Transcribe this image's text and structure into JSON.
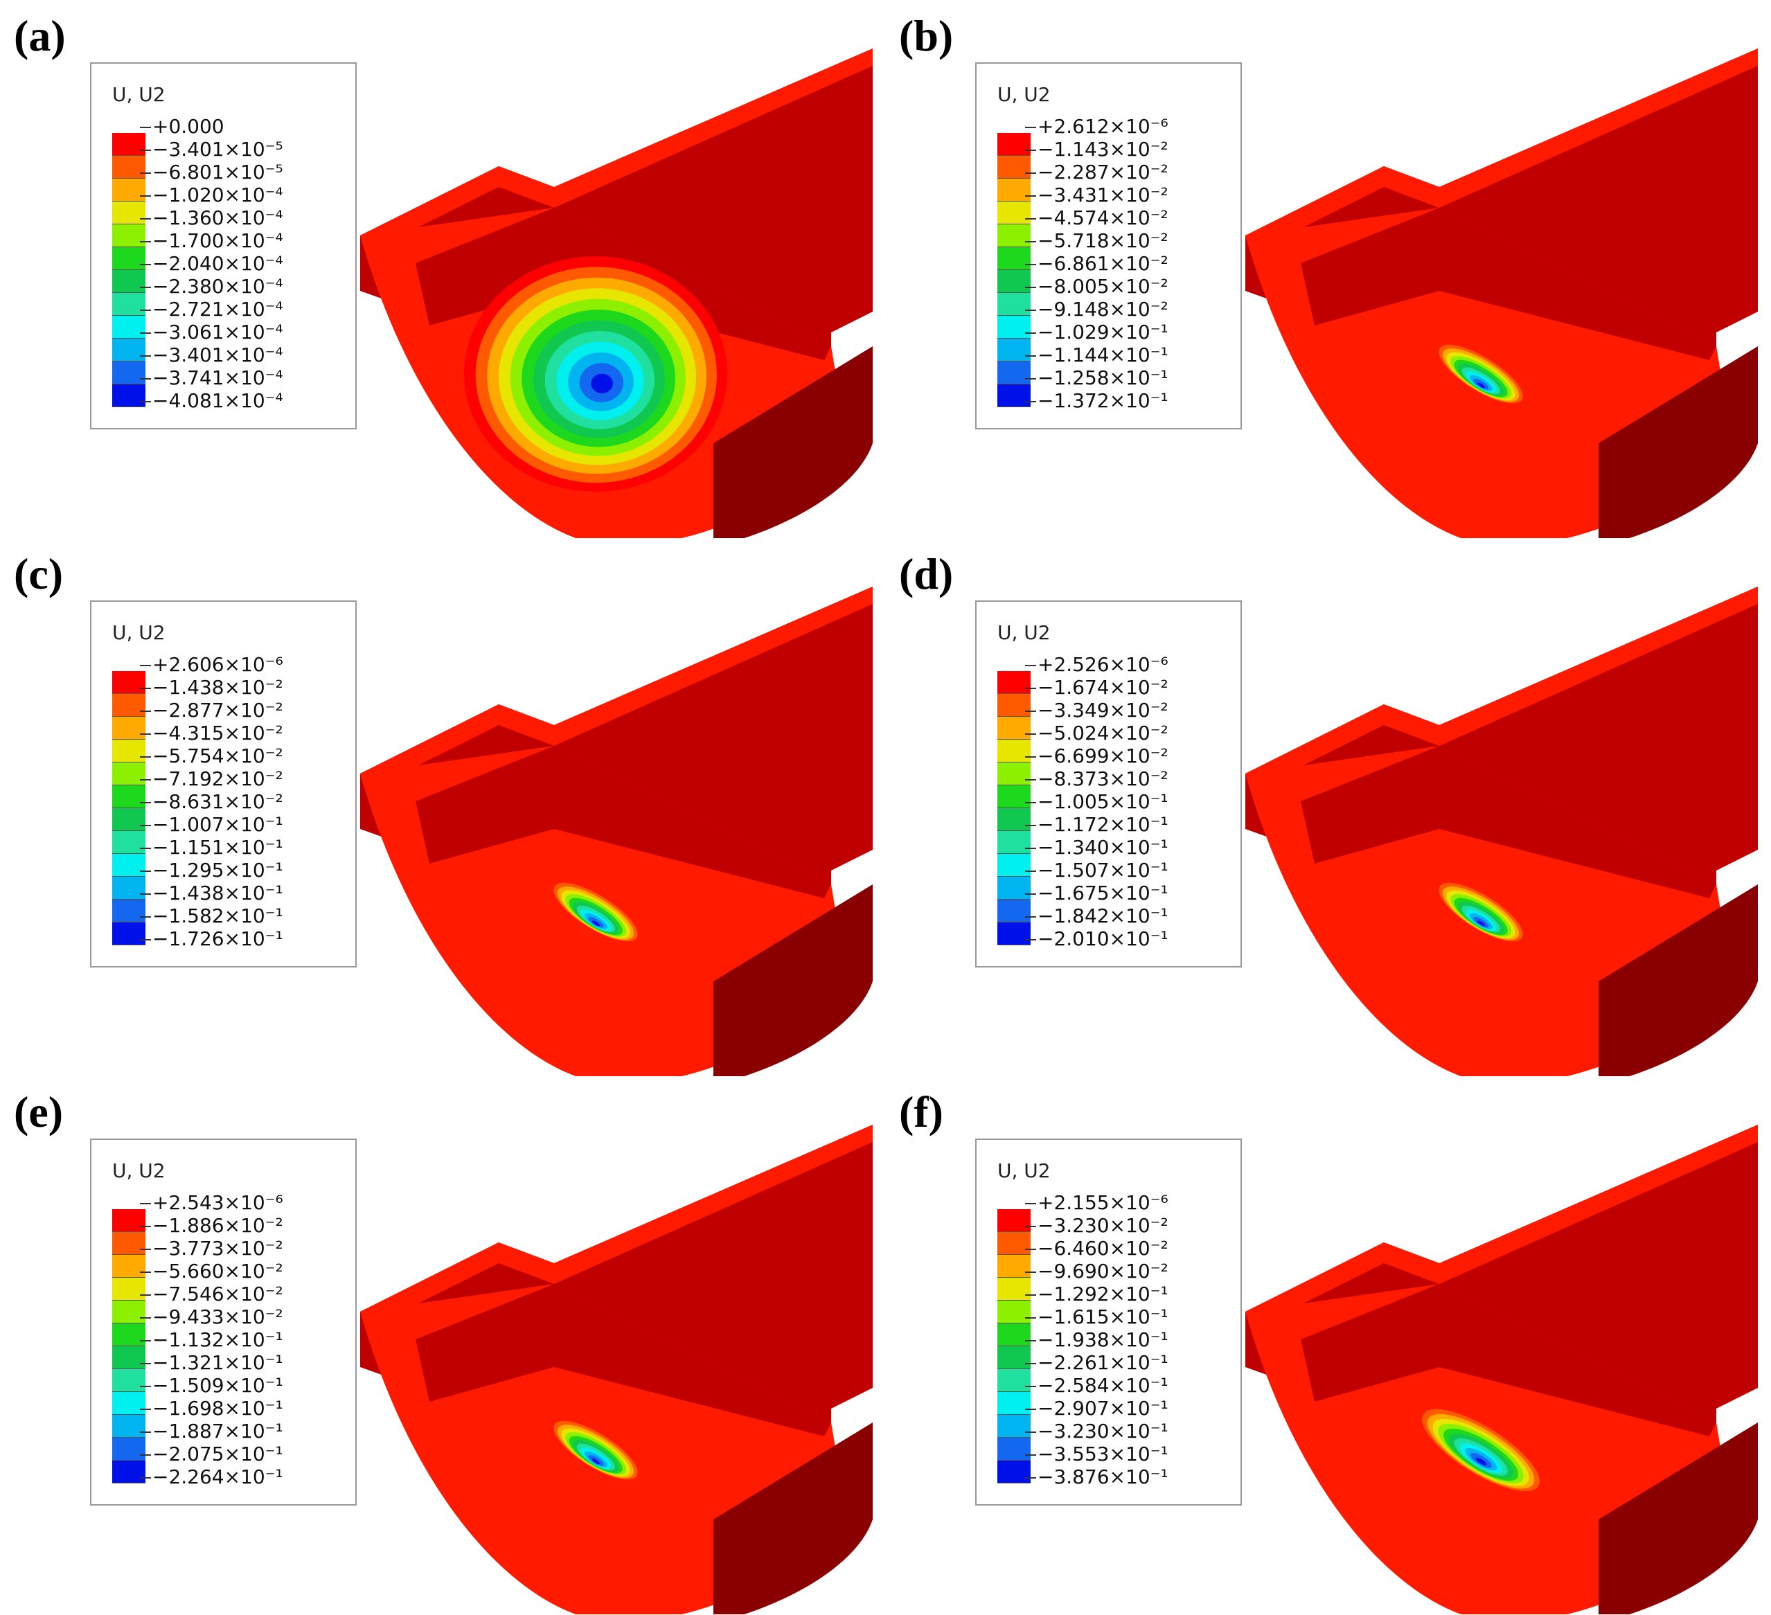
{
  "panels": [
    {
      "label": "(a)",
      "legend_title": "U, U2",
      "levels": [
        "+0.000",
        "−3.401×10⁻⁵",
        "−6.801×10⁻⁵",
        "−1.020×10⁻⁴",
        "−1.360×10⁻⁴",
        "−1.700×10⁻⁴",
        "−2.040×10⁻⁴",
        "−2.380×10⁻⁴",
        "−2.721×10⁻⁴",
        "−3.061×10⁻⁴",
        "−3.401×10⁻⁴",
        "−3.741×10⁻⁴",
        "−4.081×10⁻⁴"
      ]
    },
    {
      "label": "(b)",
      "legend_title": "U, U2",
      "levels": [
        "+2.612×10⁻⁶",
        "−1.143×10⁻²",
        "−2.287×10⁻²",
        "−3.431×10⁻²",
        "−4.574×10⁻²",
        "−5.718×10⁻²",
        "−6.861×10⁻²",
        "−8.005×10⁻²",
        "−9.148×10⁻²",
        "−1.029×10⁻¹",
        "−1.144×10⁻¹",
        "−1.258×10⁻¹",
        "−1.372×10⁻¹"
      ]
    },
    {
      "label": "(c)",
      "legend_title": "U, U2",
      "levels": [
        "+2.606×10⁻⁶",
        "−1.438×10⁻²",
        "−2.877×10⁻²",
        "−4.315×10⁻²",
        "−5.754×10⁻²",
        "−7.192×10⁻²",
        "−8.631×10⁻²",
        "−1.007×10⁻¹",
        "−1.151×10⁻¹",
        "−1.295×10⁻¹",
        "−1.438×10⁻¹",
        "−1.582×10⁻¹",
        "−1.726×10⁻¹"
      ]
    },
    {
      "label": "(d)",
      "legend_title": "U, U2",
      "levels": [
        "+2.526×10⁻⁶",
        "−1.674×10⁻²",
        "−3.349×10⁻²",
        "−5.024×10⁻²",
        "−6.699×10⁻²",
        "−8.373×10⁻²",
        "−1.005×10⁻¹",
        "−1.172×10⁻¹",
        "−1.340×10⁻¹",
        "−1.507×10⁻¹",
        "−1.675×10⁻¹",
        "−1.842×10⁻¹",
        "−2.010×10⁻¹"
      ]
    },
    {
      "label": "(e)",
      "legend_title": "U, U2",
      "levels": [
        "+2.543×10⁻⁶",
        "−1.886×10⁻²",
        "−3.773×10⁻²",
        "−5.660×10⁻²",
        "−7.546×10⁻²",
        "−9.433×10⁻²",
        "−1.132×10⁻¹",
        "−1.321×10⁻¹",
        "−1.509×10⁻¹",
        "−1.698×10⁻¹",
        "−1.887×10⁻¹",
        "−2.075×10⁻¹",
        "−2.264×10⁻¹"
      ]
    },
    {
      "label": "(f)",
      "legend_title": "U, U2",
      "levels": [
        "+2.155×10⁻⁶",
        "−3.230×10⁻²",
        "−6.460×10⁻²",
        "−9.690×10⁻²",
        "−1.292×10⁻¹",
        "−1.615×10⁻¹",
        "−1.938×10⁻¹",
        "−2.261×10⁻¹",
        "−2.584×10⁻¹",
        "−2.907×10⁻¹",
        "−3.230×10⁻¹",
        "−3.553×10⁻¹",
        "−3.876×10⁻¹"
      ]
    }
  ],
  "colormap": [
    "#ff0000",
    "#ff5a00",
    "#ffaa00",
    "#e6e600",
    "#8cf000",
    "#1ed81e",
    "#10c850",
    "#20e0a0",
    "#00f0f0",
    "#00b4f0",
    "#1468f0",
    "#0010e8"
  ],
  "part_colors": {
    "base": "#ff1a00",
    "shade": "#c00000",
    "dark": "#8a0000"
  }
}
